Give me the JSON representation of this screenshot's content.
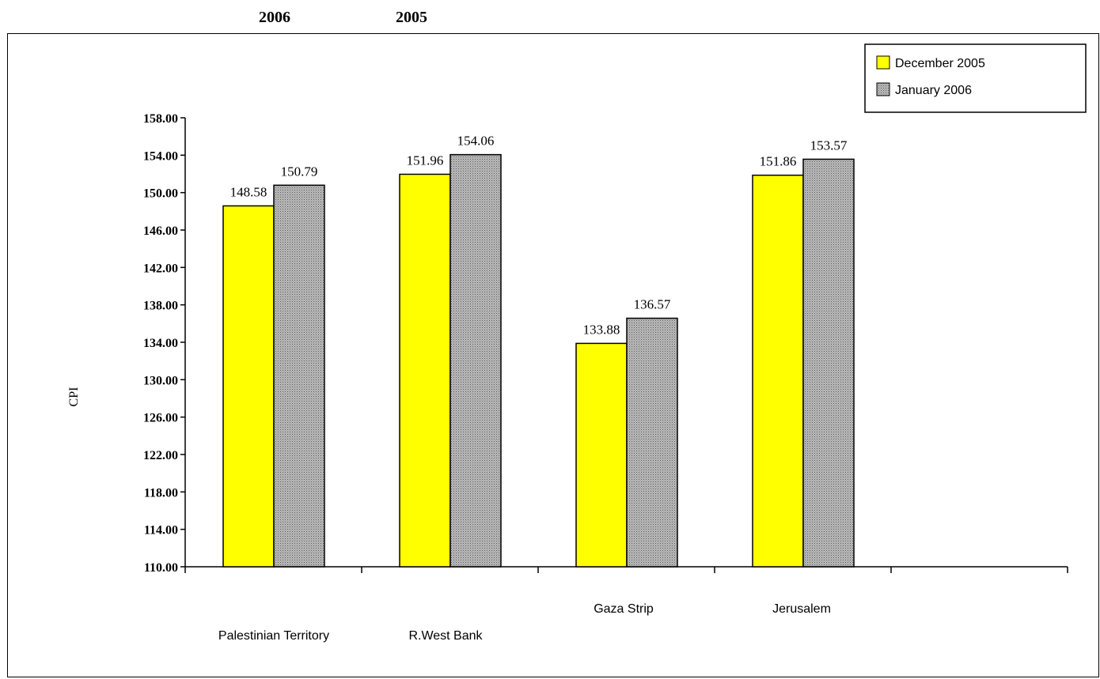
{
  "header": {
    "year_left": "2006",
    "year_right": "2005"
  },
  "chart_data": {
    "type": "bar",
    "ylabel": "CPI",
    "ylim": [
      110,
      158
    ],
    "yticks": [
      "110.00",
      "114.00",
      "118.00",
      "122.00",
      "126.00",
      "130.00",
      "134.00",
      "138.00",
      "142.00",
      "146.00",
      "150.00",
      "154.00",
      "158.00"
    ],
    "categories": [
      "Palestinian Territory",
      "R.West Bank",
      "Gaza Strip",
      "Jerusalem",
      ""
    ],
    "series": [
      {
        "name": "December 2005",
        "color": "#ffff00",
        "values": [
          148.58,
          151.96,
          133.88,
          151.86,
          null
        ],
        "labels": [
          "148.58",
          "151.96",
          "133.88",
          "151.86",
          ""
        ]
      },
      {
        "name": "January 2006",
        "color": "#a0a0a0",
        "values": [
          150.79,
          154.06,
          136.57,
          153.57,
          null
        ],
        "labels": [
          "150.79",
          "154.06",
          "136.57",
          "153.57",
          ""
        ]
      }
    ],
    "legend_position": "top-right",
    "grid": false
  }
}
